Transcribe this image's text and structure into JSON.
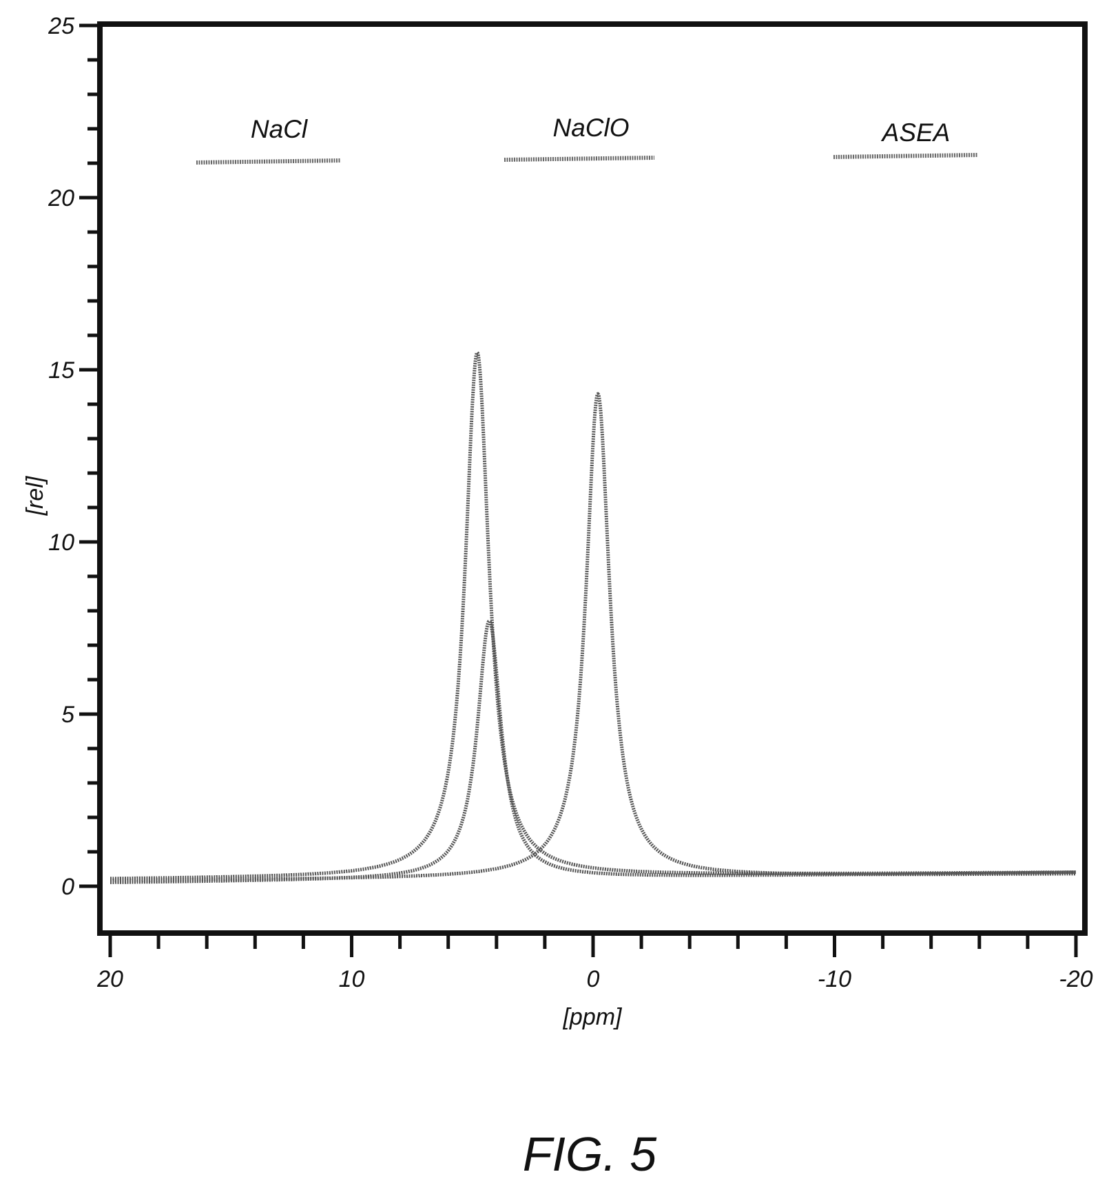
{
  "chart_data": {
    "type": "line",
    "xlabel": "[ppm]",
    "ylabel": "[rel]",
    "xlim": [
      20,
      -20
    ],
    "ylim": [
      -1.2,
      25
    ],
    "x_ticks": [
      20,
      10,
      0,
      -10,
      -20
    ],
    "x_tick_labels": [
      "20",
      "10",
      "0",
      "-10",
      "-20"
    ],
    "y_ticks": [
      0,
      5,
      10,
      15,
      20,
      25
    ],
    "y_tick_labels": [
      "0",
      "5",
      "10",
      "15",
      "20",
      "25"
    ],
    "legend_position": "top",
    "series": [
      {
        "name": "NaCl",
        "peak": {
          "center": 4.8,
          "height": 15.5,
          "hwhm": 0.6
        },
        "points": [
          [
            20,
            0.2
          ],
          [
            15,
            0.2
          ],
          [
            10,
            0.25
          ],
          [
            8,
            0.3
          ],
          [
            7,
            0.4
          ],
          [
            6,
            1.0
          ],
          [
            5.5,
            3.0
          ],
          [
            5.2,
            8.0
          ],
          [
            5.0,
            12.0
          ],
          [
            4.85,
            15.5
          ],
          [
            4.7,
            12.0
          ],
          [
            4.5,
            6.0
          ],
          [
            4.2,
            2.5
          ],
          [
            3.5,
            1.0
          ],
          [
            2.5,
            0.5
          ],
          [
            1,
            0.3
          ],
          [
            0,
            0.3
          ],
          [
            -5,
            0.35
          ],
          [
            -10,
            0.35
          ],
          [
            -15,
            0.4
          ],
          [
            -20,
            0.4
          ]
        ]
      },
      {
        "name": "NaClO",
        "peak": {
          "center": -0.2,
          "height": 14.3,
          "hwhm": 0.6
        },
        "points": [
          [
            20,
            0.15
          ],
          [
            10,
            0.2
          ],
          [
            5,
            0.2
          ],
          [
            2,
            0.4
          ],
          [
            1.5,
            1.0
          ],
          [
            1.0,
            2.5
          ],
          [
            0.6,
            7.0
          ],
          [
            0.3,
            11.5
          ],
          [
            0.1,
            13.8
          ],
          [
            -0.2,
            14.3
          ],
          [
            -0.5,
            12.0
          ],
          [
            -0.8,
            7.0
          ],
          [
            -1.2,
            3.0
          ],
          [
            -2,
            1.2
          ],
          [
            -3,
            0.5
          ],
          [
            -5,
            0.4
          ],
          [
            -10,
            0.35
          ],
          [
            -15,
            0.4
          ],
          [
            -20,
            0.35
          ]
        ]
      },
      {
        "name": "ASEA",
        "peak": {
          "center": 4.3,
          "height": 7.7,
          "hwhm": 0.6
        },
        "points": [
          [
            20,
            0.1
          ],
          [
            10,
            0.15
          ],
          [
            6,
            0.2
          ],
          [
            5.4,
            0.5
          ],
          [
            5.0,
            1.5
          ],
          [
            4.7,
            4.0
          ],
          [
            4.5,
            6.5
          ],
          [
            4.3,
            7.7
          ],
          [
            4.1,
            6.0
          ],
          [
            3.9,
            3.5
          ],
          [
            3.5,
            1.5
          ],
          [
            3.0,
            0.8
          ],
          [
            2.0,
            0.4
          ],
          [
            0,
            0.3
          ],
          [
            -5,
            0.4
          ],
          [
            -10,
            0.4
          ],
          [
            -15,
            0.45
          ],
          [
            -20,
            0.4
          ]
        ]
      }
    ]
  },
  "caption": "FIG. 5",
  "colors": {
    "axis": "#111111",
    "series": "#555555",
    "legend_line": "#666666"
  }
}
